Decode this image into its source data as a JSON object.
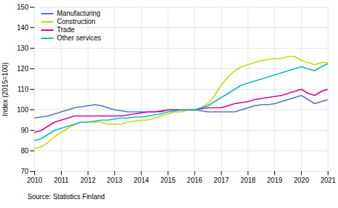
{
  "chart_data": {
    "type": "line",
    "ylabel": "Index (2015=100)",
    "source": "Source: Statistics Finland",
    "xlim": [
      2010,
      2021
    ],
    "ylim": [
      70,
      150
    ],
    "xticks": [
      2010,
      2011,
      2012,
      2013,
      2014,
      2015,
      2016,
      2017,
      2018,
      2019,
      2020,
      2021
    ],
    "yticks": [
      70,
      80,
      90,
      100,
      110,
      120,
      130,
      140,
      150
    ],
    "grid": true,
    "legend": "upper left",
    "x": [
      2010,
      2010.25,
      2010.5,
      2010.75,
      2011,
      2011.25,
      2011.5,
      2011.75,
      2012,
      2012.25,
      2012.5,
      2012.75,
      2013,
      2013.25,
      2013.5,
      2013.75,
      2014,
      2014.25,
      2014.5,
      2014.75,
      2015,
      2015.25,
      2015.5,
      2015.75,
      2016,
      2016.25,
      2016.5,
      2016.75,
      2017,
      2017.25,
      2017.5,
      2017.75,
      2018,
      2018.25,
      2018.5,
      2018.75,
      2019,
      2019.25,
      2019.5,
      2019.75,
      2020,
      2020.25,
      2020.5,
      2020.75,
      2021
    ],
    "series": [
      {
        "name": "Manufacturing",
        "color": "#4472C4",
        "values": [
          96,
          96.5,
          97,
          98,
          99,
          100,
          101,
          101.5,
          102,
          102.5,
          102,
          101,
          100,
          99.5,
          99,
          99,
          99,
          99,
          99,
          99,
          100,
          100,
          100,
          100,
          100,
          99.5,
          99,
          99,
          99,
          99,
          99,
          100,
          101,
          102,
          102.5,
          102.5,
          103,
          104,
          105,
          106,
          107,
          105,
          103,
          104,
          105
        ]
      },
      {
        "name": "Construction",
        "color": "#c8d400",
        "values": [
          81,
          82,
          84,
          87,
          89,
          91,
          93,
          94,
          94,
          94,
          94,
          93,
          93,
          93,
          94,
          94.5,
          95,
          95,
          96,
          97,
          98,
          99,
          99,
          100,
          100,
          101,
          103,
          107,
          112,
          116,
          119,
          121,
          122,
          123,
          124,
          124.5,
          125,
          125,
          126,
          126,
          124,
          123,
          122,
          123,
          123
        ]
      },
      {
        "name": "Trade",
        "color": "#CC0099",
        "values": [
          89,
          90,
          92,
          94,
          95,
          96,
          97,
          97,
          97,
          97,
          97,
          97,
          97,
          97,
          97.5,
          98,
          98.5,
          99,
          99,
          99.5,
          100,
          100,
          100,
          100,
          100,
          100.5,
          101,
          101,
          101,
          102,
          103,
          103.5,
          104,
          105,
          105.5,
          106,
          106.5,
          107,
          108,
          109,
          110,
          108,
          107,
          109,
          110
        ]
      },
      {
        "name": "Other services",
        "color": "#00B8B8",
        "values": [
          85,
          86,
          88,
          90,
          91,
          92,
          93,
          94,
          94,
          94.5,
          95,
          95,
          95.5,
          96,
          96,
          96.5,
          96.5,
          97,
          97.5,
          98,
          99,
          99.5,
          100,
          100,
          100,
          101,
          102,
          104,
          106,
          108,
          110,
          112,
          113,
          114,
          115,
          116,
          117,
          118,
          119,
          120,
          121,
          120,
          119,
          121,
          122.5
        ]
      }
    ]
  }
}
